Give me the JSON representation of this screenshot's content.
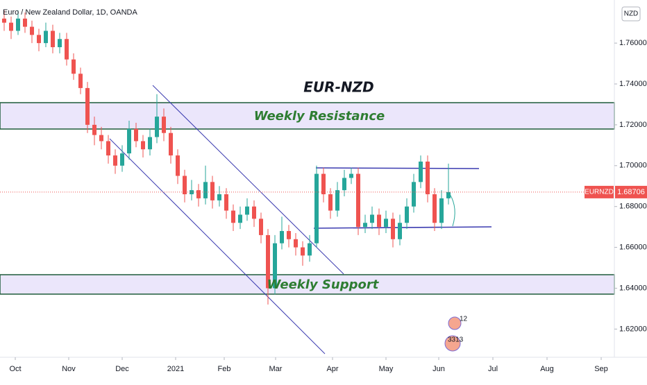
{
  "chart_data": {
    "type": "candlestick",
    "title": "EUR-NZD",
    "legend_text": "Euro / New Zealand Dollar, 1D, OANDA",
    "axis_currency": "NZD",
    "symbol": "EURNZD",
    "last_price_label": "1.68706",
    "annotations": [
      "Weekly Resistance",
      "Weekly Support"
    ],
    "event_labels": [
      "12",
      "3313"
    ],
    "up_color": "#26a69a",
    "down_color": "#ef5350",
    "xlim": [
      -0.6,
      87.9
    ],
    "xticks": [
      {
        "value": 1.6,
        "label": "Oct"
      },
      {
        "value": 9.3,
        "label": "Nov"
      },
      {
        "value": 17.0,
        "label": "Dec"
      },
      {
        "value": 24.7,
        "label": "2021"
      },
      {
        "value": 31.7,
        "label": "Feb"
      },
      {
        "value": 39.1,
        "label": "Mar"
      },
      {
        "value": 47.3,
        "label": "Apr"
      },
      {
        "value": 55.0,
        "label": "May"
      },
      {
        "value": 62.6,
        "label": "Jun"
      },
      {
        "value": 70.4,
        "label": "Jul"
      },
      {
        "value": 78.2,
        "label": "Aug"
      },
      {
        "value": 86.0,
        "label": "Sep"
      }
    ],
    "ylim": [
      1.6062,
      1.7811
    ],
    "yticks": [
      {
        "value": 1.62,
        "label": "1.62000"
      },
      {
        "value": 1.64,
        "label": "1.64000"
      },
      {
        "value": 1.66,
        "label": "1.66000"
      },
      {
        "value": 1.68,
        "label": "1.68000"
      },
      {
        "value": 1.7,
        "label": "1.70000"
      },
      {
        "value": 1.72,
        "label": "1.72000"
      },
      {
        "value": 1.74,
        "label": "1.74000"
      },
      {
        "value": 1.76,
        "label": "1.76000"
      }
    ],
    "last_price": 1.68706,
    "candles": [
      [
        1.772,
        1.776,
        1.766,
        1.77
      ],
      [
        1.77,
        1.773,
        1.762,
        1.766
      ],
      [
        1.766,
        1.776,
        1.764,
        1.772
      ],
      [
        1.772,
        1.775,
        1.765,
        1.768
      ],
      [
        1.768,
        1.771,
        1.76,
        1.764
      ],
      [
        1.764,
        1.767,
        1.756,
        1.76
      ],
      [
        1.76,
        1.77,
        1.758,
        1.766
      ],
      [
        1.766,
        1.769,
        1.755,
        1.758
      ],
      [
        1.758,
        1.765,
        1.755,
        1.762
      ],
      [
        1.762,
        1.765,
        1.749,
        1.752
      ],
      [
        1.752,
        1.755,
        1.742,
        1.745
      ],
      [
        1.745,
        1.748,
        1.735,
        1.738
      ],
      [
        1.738,
        1.741,
        1.716,
        1.72
      ],
      [
        1.72,
        1.724,
        1.71,
        1.715
      ],
      [
        1.715,
        1.719,
        1.708,
        1.712
      ],
      [
        1.712,
        1.715,
        1.701,
        1.705
      ],
      [
        1.705,
        1.708,
        1.696,
        1.7
      ],
      [
        1.7,
        1.71,
        1.697,
        1.706
      ],
      [
        1.706,
        1.722,
        1.703,
        1.718
      ],
      [
        1.718,
        1.721,
        1.709,
        1.712
      ],
      [
        1.712,
        1.715,
        1.704,
        1.708
      ],
      [
        1.708,
        1.718,
        1.705,
        1.714
      ],
      [
        1.714,
        1.735,
        1.711,
        1.724
      ],
      [
        1.724,
        1.728,
        1.712,
        1.716
      ],
      [
        1.716,
        1.719,
        1.701,
        1.705
      ],
      [
        1.705,
        1.708,
        1.691,
        1.695
      ],
      [
        1.695,
        1.698,
        1.682,
        1.686
      ],
      [
        1.686,
        1.693,
        1.683,
        1.688
      ],
      [
        1.688,
        1.691,
        1.68,
        1.684
      ],
      [
        1.684,
        1.7,
        1.681,
        1.692
      ],
      [
        1.692,
        1.695,
        1.679,
        1.683
      ],
      [
        1.683,
        1.69,
        1.68,
        1.686
      ],
      [
        1.686,
        1.689,
        1.674,
        1.678
      ],
      [
        1.678,
        1.681,
        1.668,
        1.672
      ],
      [
        1.672,
        1.68,
        1.669,
        1.676
      ],
      [
        1.676,
        1.684,
        1.673,
        1.68
      ],
      [
        1.68,
        1.683,
        1.67,
        1.674
      ],
      [
        1.674,
        1.677,
        1.662,
        1.666
      ],
      [
        1.666,
        1.669,
        1.632,
        1.64
      ],
      [
        1.64,
        1.666,
        1.637,
        1.662
      ],
      [
        1.662,
        1.675,
        1.659,
        1.668
      ],
      [
        1.668,
        1.671,
        1.66,
        1.664
      ],
      [
        1.664,
        1.667,
        1.656,
        1.66
      ],
      [
        1.66,
        1.663,
        1.651,
        1.656
      ],
      [
        1.656,
        1.666,
        1.653,
        1.662
      ],
      [
        1.662,
        1.7,
        1.66,
        1.696
      ],
      [
        1.696,
        1.699,
        1.682,
        1.686
      ],
      [
        1.686,
        1.689,
        1.674,
        1.678
      ],
      [
        1.678,
        1.692,
        1.675,
        1.688
      ],
      [
        1.688,
        1.698,
        1.685,
        1.694
      ],
      [
        1.694,
        1.699,
        1.691,
        1.696
      ],
      [
        1.696,
        1.699,
        1.666,
        1.67
      ],
      [
        1.67,
        1.676,
        1.667,
        1.672
      ],
      [
        1.672,
        1.68,
        1.669,
        1.676
      ],
      [
        1.676,
        1.679,
        1.666,
        1.67
      ],
      [
        1.67,
        1.678,
        1.667,
        1.674
      ],
      [
        1.674,
        1.677,
        1.66,
        1.664
      ],
      [
        1.664,
        1.676,
        1.661,
        1.672
      ],
      [
        1.672,
        1.684,
        1.669,
        1.68
      ],
      [
        1.68,
        1.696,
        1.677,
        1.692
      ],
      [
        1.692,
        1.705,
        1.689,
        1.702
      ],
      [
        1.702,
        1.705,
        1.682,
        1.686
      ],
      [
        1.686,
        1.689,
        1.668,
        1.672
      ],
      [
        1.672,
        1.688,
        1.669,
        1.684
      ],
      [
        1.684,
        1.701,
        1.681,
        1.68706
      ]
    ]
  }
}
